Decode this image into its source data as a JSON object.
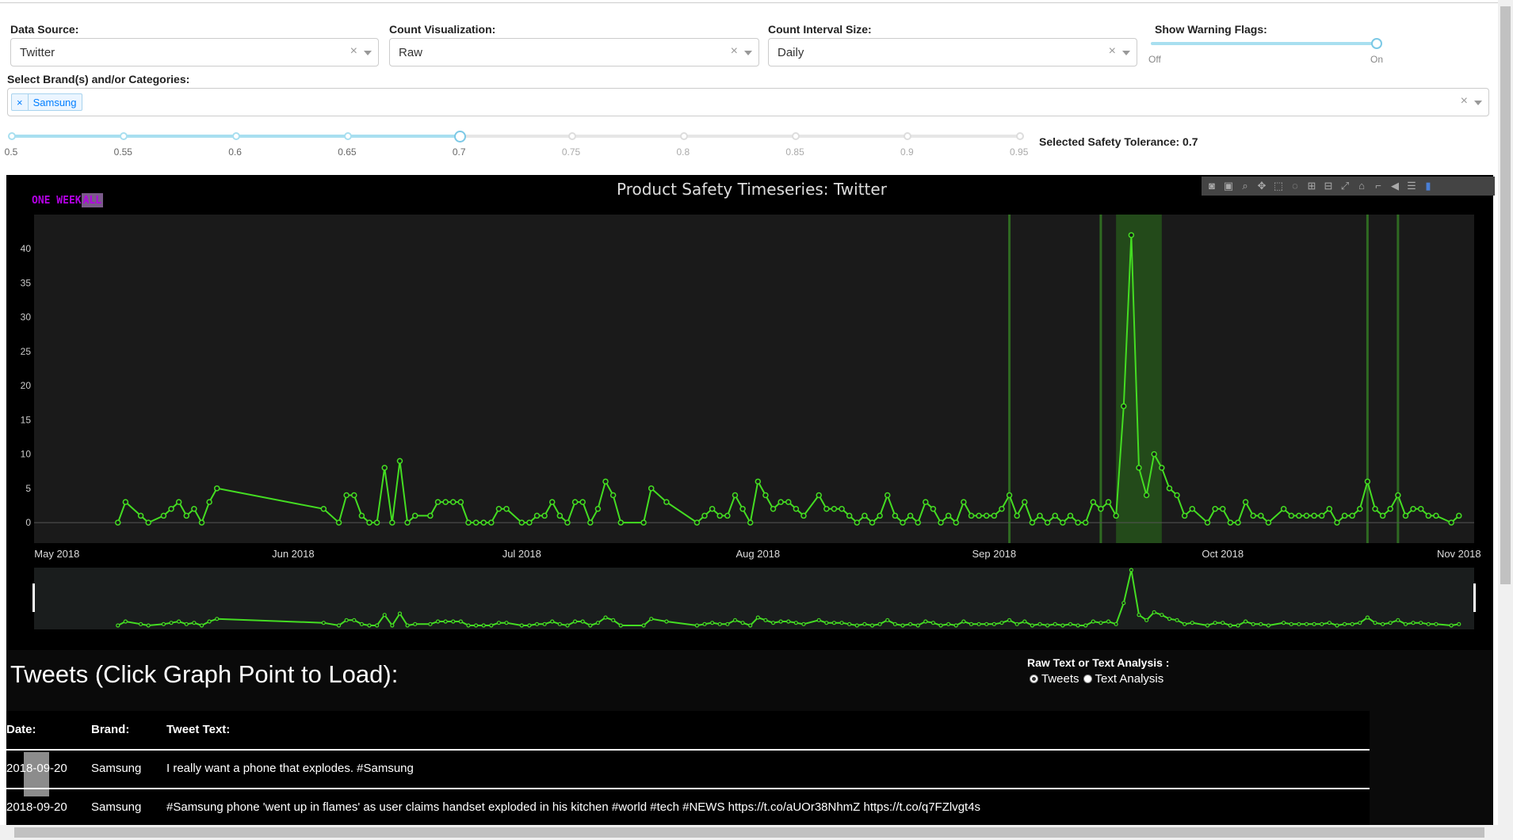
{
  "controls": {
    "data_source": {
      "label": "Data Source:",
      "value": "Twitter"
    },
    "count_vis": {
      "label": "Count Visualization:",
      "value": "Raw"
    },
    "interval": {
      "label": "Count Interval Size:",
      "value": "Daily"
    },
    "warning_flags": {
      "label": "Show Warning Flags:",
      "off": "Off",
      "on": "On",
      "value": "On"
    },
    "clear_glyph": "×",
    "brands": {
      "label": "Select Brand(s) and/or Categories:",
      "tag": "Samsung",
      "tag_remove": "×"
    }
  },
  "tolerance_slider": {
    "marks": [
      "0.5",
      "0.55",
      "0.6",
      "0.65",
      "0.7",
      "0.75",
      "0.8",
      "0.85",
      "0.9",
      "0.95"
    ],
    "value": 0.7,
    "readout": "Selected Safety Tolerance: 0.7"
  },
  "chart": {
    "range_buttons": [
      "ONE WEEK",
      "ALL"
    ],
    "modebar_icons": [
      "camera-icon",
      "save-icon",
      "zoom-icon",
      "pan-icon",
      "box-select-icon",
      "lasso-icon",
      "zoom-in-icon",
      "zoom-out-icon",
      "autoscale-icon",
      "reset-icon",
      "spike-icon",
      "hover-closest-icon",
      "hover-compare-icon",
      "plotly-logo-icon"
    ]
  },
  "chart_data": {
    "type": "line",
    "title": "Product Safety Timeseries: Twitter",
    "x_ticks": [
      "May 2018",
      "Jun 2018",
      "Jul 2018",
      "Aug 2018",
      "Sep 2018",
      "Oct 2018",
      "Nov 2018"
    ],
    "y_ticks": [
      0,
      5,
      10,
      15,
      20,
      25,
      30,
      35,
      40
    ],
    "ylim": [
      -3,
      45
    ],
    "xlim": [
      "2018-04-28",
      "2018-11-03"
    ],
    "series": [
      {
        "color": "#44dd22",
        "points": [
          [
            "2018-05-09",
            0
          ],
          [
            "2018-05-10",
            3
          ],
          [
            "2018-05-12",
            1
          ],
          [
            "2018-05-13",
            0
          ],
          [
            "2018-05-15",
            1
          ],
          [
            "2018-05-16",
            2
          ],
          [
            "2018-05-17",
            3
          ],
          [
            "2018-05-18",
            1
          ],
          [
            "2018-05-19",
            2
          ],
          [
            "2018-05-20",
            0
          ],
          [
            "2018-05-21",
            3
          ],
          [
            "2018-05-22",
            5
          ],
          [
            "2018-06-05",
            2
          ],
          [
            "2018-06-07",
            0
          ],
          [
            "2018-06-08",
            4
          ],
          [
            "2018-06-09",
            4
          ],
          [
            "2018-06-10",
            1
          ],
          [
            "2018-06-11",
            0
          ],
          [
            "2018-06-12",
            0
          ],
          [
            "2018-06-13",
            8
          ],
          [
            "2018-06-14",
            0
          ],
          [
            "2018-06-15",
            9
          ],
          [
            "2018-06-16",
            0
          ],
          [
            "2018-06-17",
            1
          ],
          [
            "2018-06-19",
            1
          ],
          [
            "2018-06-20",
            3
          ],
          [
            "2018-06-21",
            3
          ],
          [
            "2018-06-22",
            3
          ],
          [
            "2018-06-23",
            3
          ],
          [
            "2018-06-24",
            0
          ],
          [
            "2018-06-25",
            0
          ],
          [
            "2018-06-26",
            0
          ],
          [
            "2018-06-27",
            0
          ],
          [
            "2018-06-28",
            2
          ],
          [
            "2018-06-29",
            2
          ],
          [
            "2018-07-01",
            0
          ],
          [
            "2018-07-02",
            0
          ],
          [
            "2018-07-03",
            1
          ],
          [
            "2018-07-04",
            1
          ],
          [
            "2018-07-05",
            3
          ],
          [
            "2018-07-06",
            1
          ],
          [
            "2018-07-07",
            0
          ],
          [
            "2018-07-08",
            3
          ],
          [
            "2018-07-09",
            3
          ],
          [
            "2018-07-10",
            0
          ],
          [
            "2018-07-11",
            2
          ],
          [
            "2018-07-12",
            6
          ],
          [
            "2018-07-13",
            4
          ],
          [
            "2018-07-14",
            0
          ],
          [
            "2018-07-17",
            0
          ],
          [
            "2018-07-18",
            5
          ],
          [
            "2018-07-20",
            3
          ],
          [
            "2018-07-24",
            0
          ],
          [
            "2018-07-25",
            1
          ],
          [
            "2018-07-26",
            2
          ],
          [
            "2018-07-27",
            1
          ],
          [
            "2018-07-28",
            1
          ],
          [
            "2018-07-29",
            4
          ],
          [
            "2018-07-30",
            2
          ],
          [
            "2018-07-31",
            0
          ],
          [
            "2018-08-01",
            6
          ],
          [
            "2018-08-02",
            4
          ],
          [
            "2018-08-03",
            2
          ],
          [
            "2018-08-04",
            3
          ],
          [
            "2018-08-05",
            3
          ],
          [
            "2018-08-06",
            2
          ],
          [
            "2018-08-07",
            1
          ],
          [
            "2018-08-09",
            4
          ],
          [
            "2018-08-10",
            2
          ],
          [
            "2018-08-11",
            2
          ],
          [
            "2018-08-12",
            2
          ],
          [
            "2018-08-13",
            1
          ],
          [
            "2018-08-14",
            0
          ],
          [
            "2018-08-15",
            1
          ],
          [
            "2018-08-16",
            0
          ],
          [
            "2018-08-17",
            1
          ],
          [
            "2018-08-18",
            4
          ],
          [
            "2018-08-19",
            1
          ],
          [
            "2018-08-20",
            0
          ],
          [
            "2018-08-21",
            1
          ],
          [
            "2018-08-22",
            0
          ],
          [
            "2018-08-23",
            3
          ],
          [
            "2018-08-24",
            2
          ],
          [
            "2018-08-25",
            0
          ],
          [
            "2018-08-26",
            1
          ],
          [
            "2018-08-27",
            0
          ],
          [
            "2018-08-28",
            3
          ],
          [
            "2018-08-29",
            1
          ],
          [
            "2018-08-30",
            1
          ],
          [
            "2018-08-31",
            1
          ],
          [
            "2018-09-01",
            1
          ],
          [
            "2018-09-02",
            2
          ],
          [
            "2018-09-03",
            4
          ],
          [
            "2018-09-04",
            1
          ],
          [
            "2018-09-05",
            3
          ],
          [
            "2018-09-06",
            0
          ],
          [
            "2018-09-07",
            1
          ],
          [
            "2018-09-08",
            0
          ],
          [
            "2018-09-09",
            1
          ],
          [
            "2018-09-10",
            0
          ],
          [
            "2018-09-11",
            1
          ],
          [
            "2018-09-12",
            0
          ],
          [
            "2018-09-13",
            0
          ],
          [
            "2018-09-14",
            3
          ],
          [
            "2018-09-15",
            2
          ],
          [
            "2018-09-16",
            3
          ],
          [
            "2018-09-17",
            1
          ],
          [
            "2018-09-18",
            17
          ],
          [
            "2018-09-19",
            42
          ],
          [
            "2018-09-20",
            8
          ],
          [
            "2018-09-21",
            4
          ],
          [
            "2018-09-22",
            10
          ],
          [
            "2018-09-23",
            8
          ],
          [
            "2018-09-24",
            5
          ],
          [
            "2018-09-25",
            4
          ],
          [
            "2018-09-26",
            1
          ],
          [
            "2018-09-27",
            2
          ],
          [
            "2018-09-29",
            0
          ],
          [
            "2018-09-30",
            2
          ],
          [
            "2018-10-01",
            2
          ],
          [
            "2018-10-02",
            0
          ],
          [
            "2018-10-03",
            0
          ],
          [
            "2018-10-04",
            3
          ],
          [
            "2018-10-05",
            1
          ],
          [
            "2018-10-06",
            1
          ],
          [
            "2018-10-07",
            0
          ],
          [
            "2018-10-09",
            2
          ],
          [
            "2018-10-10",
            1
          ],
          [
            "2018-10-11",
            1
          ],
          [
            "2018-10-12",
            1
          ],
          [
            "2018-10-13",
            1
          ],
          [
            "2018-10-14",
            1
          ],
          [
            "2018-10-15",
            2
          ],
          [
            "2018-10-16",
            0
          ],
          [
            "2018-10-17",
            1
          ],
          [
            "2018-10-18",
            1
          ],
          [
            "2018-10-19",
            2
          ],
          [
            "2018-10-20",
            6
          ],
          [
            "2018-10-21",
            2
          ],
          [
            "2018-10-22",
            1
          ],
          [
            "2018-10-23",
            2
          ],
          [
            "2018-10-24",
            4
          ],
          [
            "2018-10-25",
            1
          ],
          [
            "2018-10-26",
            2
          ],
          [
            "2018-10-27",
            2
          ],
          [
            "2018-10-28",
            1
          ],
          [
            "2018-10-29",
            1
          ],
          [
            "2018-10-31",
            0
          ],
          [
            "2018-11-01",
            1
          ]
        ]
      }
    ],
    "warning_lines": [
      "2018-09-03",
      "2018-09-15",
      "2018-10-20",
      "2018-10-24"
    ],
    "warning_band": [
      "2018-09-17",
      "2018-09-23"
    ],
    "grid": false,
    "rangeslider": true
  },
  "tweets": {
    "title": "Tweets (Click Graph Point to Load):",
    "radio_label": "Raw Text or Text Analysis :",
    "radio_options": [
      "Tweets",
      "Text Analysis"
    ],
    "radio_selected": "Tweets",
    "columns": [
      "Date:",
      "Brand:",
      "Tweet Text:"
    ],
    "rows": [
      [
        "2018-09-20",
        "Samsung",
        "I really want a phone that explodes. #Samsung"
      ],
      [
        "2018-09-20",
        "Samsung",
        "#Samsung phone 'went up in flames' as user claims handset exploded in his kitchen #world #tech #NEWS https://t.co/aUOr38NhmZ https://t.co/q7FZlvgt4s"
      ]
    ]
  }
}
